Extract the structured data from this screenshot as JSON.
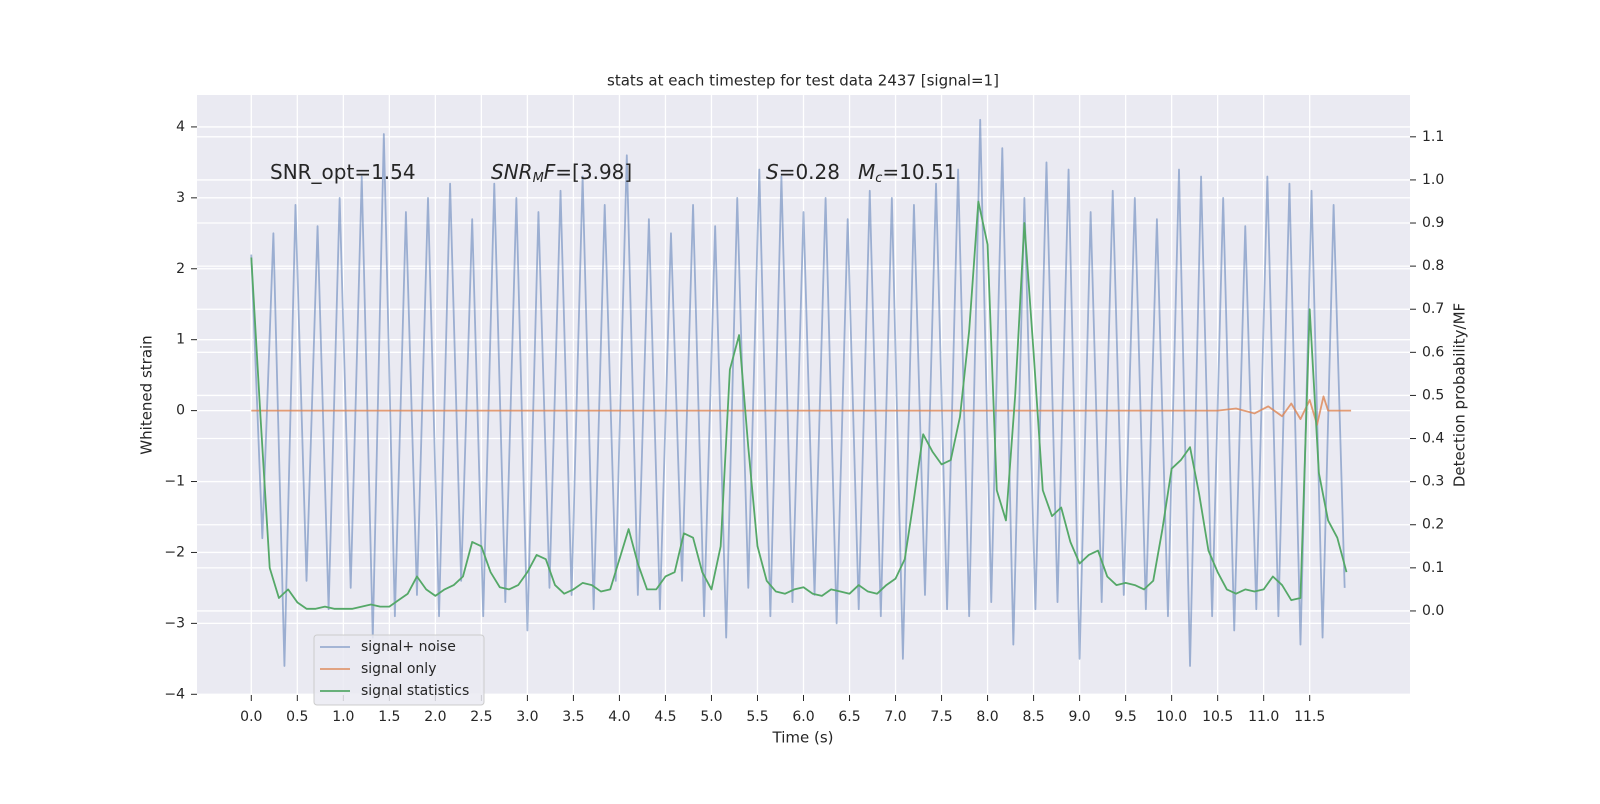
{
  "chart_data": {
    "type": "line",
    "title": "stats at each timestep for test data 2437 [signal=1]",
    "xlabel": "Time (s)",
    "ylabel": "Whitened strain",
    "y2label": "Detection probability/MF",
    "xlim": [
      -0.59,
      12.59
    ],
    "ylim": [
      -4.01,
      4.45
    ],
    "y2lim": [
      -0.195,
      1.197
    ],
    "xticks": [
      {
        "value": 0,
        "label": "0.0"
      },
      0.5,
      {
        "value": 1,
        "label": "1.0"
      },
      1.5,
      {
        "value": 2,
        "label": "2.0"
      },
      2.5,
      {
        "value": 3,
        "label": "3.0"
      },
      3.5,
      {
        "value": 4,
        "label": "4.0"
      },
      4.5,
      {
        "value": 5,
        "label": "5.0"
      },
      5.5,
      {
        "value": 6,
        "label": "6.0"
      },
      6.5,
      {
        "value": 7,
        "label": "7.0"
      },
      7.5,
      {
        "value": 8,
        "label": "8.0"
      },
      8.5,
      {
        "value": 9,
        "label": "9.0"
      },
      9.5,
      {
        "value": 10,
        "label": "10.0"
      },
      10.5,
      {
        "value": 11,
        "label": "11.0"
      },
      11.5
    ],
    "yticks": [
      {
        "value": -4,
        "label": "−4"
      },
      {
        "value": -3,
        "label": "−3"
      },
      {
        "value": -2,
        "label": "−2"
      },
      {
        "value": -1,
        "label": "−1"
      },
      0,
      1,
      2,
      3,
      4
    ],
    "y2ticks": [
      {
        "value": 0,
        "label": "0.0"
      },
      0.1,
      0.2,
      0.3,
      0.4,
      0.5,
      0.6,
      0.7,
      0.8,
      0.9,
      {
        "value": 1,
        "label": "1.0"
      },
      1.1
    ],
    "grid": true,
    "legend": "lower left",
    "annotations": [
      {
        "segments": [
          {
            "text": "SNR_opt=1.54"
          }
        ]
      },
      {
        "segments": [
          {
            "text": "SNR",
            "italic": true
          },
          {
            "text": "M",
            "italic": true,
            "sub": true
          },
          {
            "text": "F",
            "italic": true
          },
          {
            "text": "=[3.98]"
          }
        ]
      },
      {
        "segments": [
          {
            "text": "S",
            "italic": true
          },
          {
            "text": "=0.28"
          }
        ]
      },
      {
        "segments": [
          {
            "text": "M",
            "italic": true
          },
          {
            "text": "c",
            "italic": true,
            "sub": true
          },
          {
            "text": "=10.51"
          }
        ]
      }
    ],
    "series": [
      {
        "name": "signal+ noise",
        "color": "#4c72b0",
        "opacity": 0.5,
        "x": [
          0,
          0.12,
          0.24,
          0.36,
          0.48,
          0.6,
          0.72,
          0.84,
          0.96,
          1.08,
          1.2,
          1.32,
          1.44,
          1.56,
          1.68,
          1.8,
          1.92,
          2.04,
          2.16,
          2.28,
          2.4,
          2.52,
          2.64,
          2.76,
          2.88,
          3,
          3.12,
          3.24,
          3.36,
          3.48,
          3.6,
          3.72,
          3.84,
          3.96,
          4.08,
          4.2,
          4.32,
          4.44,
          4.56,
          4.68,
          4.8,
          4.92,
          5.04,
          5.16,
          5.28,
          5.4,
          5.52,
          5.64,
          5.76,
          5.88,
          6,
          6.12,
          6.24,
          6.36,
          6.48,
          6.6,
          6.72,
          6.84,
          6.96,
          7.08,
          7.2,
          7.32,
          7.44,
          7.56,
          7.68,
          7.8,
          7.92,
          8.04,
          8.16,
          8.28,
          8.4,
          8.52,
          8.64,
          8.76,
          8.88,
          9,
          9.12,
          9.24,
          9.36,
          9.48,
          9.6,
          9.72,
          9.84,
          9.96,
          10.08,
          10.2,
          10.32,
          10.44,
          10.56,
          10.68,
          10.8,
          10.92,
          11.04,
          11.16,
          11.28,
          11.4,
          11.52,
          11.64,
          11.76,
          11.88
        ],
        "values": [
          2.2,
          -1.8,
          2.5,
          -3.6,
          2.9,
          -2.4,
          2.6,
          -2.8,
          3.0,
          -2.5,
          3.3,
          -3.2,
          3.9,
          -2.9,
          2.8,
          -2.6,
          3.0,
          -2.9,
          3.2,
          -2.4,
          2.7,
          -2.9,
          3.2,
          -2.7,
          3.0,
          -3.1,
          2.8,
          -2.5,
          3.1,
          -2.6,
          3.3,
          -2.8,
          2.9,
          -2.4,
          3.6,
          -2.6,
          2.7,
          -2.8,
          2.5,
          -2.4,
          2.9,
          -2.9,
          2.6,
          -3.2,
          3.0,
          -2.5,
          3.4,
          -2.9,
          3.3,
          -2.7,
          2.8,
          -2.6,
          3.0,
          -3.0,
          2.7,
          -2.8,
          3.1,
          -2.9,
          3.0,
          -3.5,
          2.9,
          -2.6,
          3.2,
          -2.8,
          3.4,
          -2.9,
          4.1,
          -2.7,
          3.7,
          -3.3,
          3.0,
          -2.8,
          3.5,
          -2.7,
          3.4,
          -3.5,
          2.8,
          -2.7,
          3.1,
          -2.6,
          3.0,
          -2.8,
          2.7,
          -2.9,
          3.4,
          -3.6,
          3.3,
          -2.9,
          3.0,
          -3.1,
          2.6,
          -2.8,
          3.3,
          -2.9,
          3.2,
          -3.3,
          3.1,
          -3.2,
          2.9,
          -2.5
        ]
      },
      {
        "name": "signal only",
        "color": "#dd8452",
        "opacity": 0.8,
        "x": [
          0,
          10.5,
          10.7,
          10.9,
          11.05,
          11.2,
          11.3,
          11.4,
          11.5,
          11.58,
          11.65,
          11.7,
          11.95
        ],
        "values": [
          0,
          0,
          0.03,
          -0.04,
          0.06,
          -0.08,
          0.1,
          -0.12,
          0.15,
          -0.2,
          0.2,
          0,
          0
        ]
      },
      {
        "name": "signal statistics",
        "color": "#55a868",
        "opacity": 1,
        "axis": "y2",
        "x": [
          0,
          0.1,
          0.2,
          0.3,
          0.4,
          0.5,
          0.6,
          0.7,
          0.8,
          0.9,
          1,
          1.1,
          1.2,
          1.3,
          1.4,
          1.5,
          1.6,
          1.7,
          1.8,
          1.9,
          2,
          2.1,
          2.2,
          2.3,
          2.4,
          2.5,
          2.6,
          2.7,
          2.8,
          2.9,
          3,
          3.1,
          3.2,
          3.3,
          3.4,
          3.5,
          3.6,
          3.7,
          3.8,
          3.9,
          4,
          4.1,
          4.2,
          4.3,
          4.4,
          4.5,
          4.6,
          4.7,
          4.8,
          4.9,
          5,
          5.1,
          5.2,
          5.3,
          5.4,
          5.5,
          5.6,
          5.7,
          5.8,
          5.9,
          6,
          6.1,
          6.2,
          6.3,
          6.4,
          6.5,
          6.6,
          6.7,
          6.8,
          6.9,
          7,
          7.1,
          7.2,
          7.3,
          7.4,
          7.5,
          7.6,
          7.7,
          7.8,
          7.9,
          8,
          8.1,
          8.2,
          8.3,
          8.4,
          8.5,
          8.6,
          8.7,
          8.8,
          8.9,
          9,
          9.1,
          9.2,
          9.3,
          9.4,
          9.5,
          9.6,
          9.7,
          9.8,
          9.9,
          10,
          10.1,
          10.2,
          10.3,
          10.4,
          10.5,
          10.6,
          10.7,
          10.8,
          10.9,
          11,
          11.1,
          11.2,
          11.3,
          11.4,
          11.5,
          11.6,
          11.7,
          11.8,
          11.9
        ],
        "values": [
          0.82,
          0.45,
          0.1,
          0.03,
          0.05,
          0.02,
          0.005,
          0.005,
          0.01,
          0.005,
          0.005,
          0.005,
          0.01,
          0.015,
          0.01,
          0.01,
          0.025,
          0.04,
          0.08,
          0.05,
          0.035,
          0.05,
          0.06,
          0.08,
          0.16,
          0.15,
          0.09,
          0.055,
          0.05,
          0.06,
          0.09,
          0.13,
          0.12,
          0.06,
          0.04,
          0.05,
          0.065,
          0.06,
          0.045,
          0.05,
          0.12,
          0.19,
          0.11,
          0.05,
          0.05,
          0.08,
          0.09,
          0.18,
          0.17,
          0.09,
          0.05,
          0.15,
          0.56,
          0.64,
          0.38,
          0.15,
          0.07,
          0.045,
          0.04,
          0.05,
          0.055,
          0.04,
          0.035,
          0.05,
          0.045,
          0.04,
          0.06,
          0.045,
          0.04,
          0.06,
          0.075,
          0.12,
          0.26,
          0.41,
          0.37,
          0.34,
          0.35,
          0.45,
          0.65,
          0.95,
          0.85,
          0.28,
          0.21,
          0.5,
          0.9,
          0.6,
          0.28,
          0.22,
          0.24,
          0.16,
          0.11,
          0.13,
          0.14,
          0.08,
          0.06,
          0.065,
          0.06,
          0.05,
          0.07,
          0.19,
          0.33,
          0.35,
          0.38,
          0.27,
          0.14,
          0.09,
          0.05,
          0.04,
          0.05,
          0.045,
          0.05,
          0.08,
          0.06,
          0.025,
          0.03,
          0.7,
          0.32,
          0.21,
          0.17,
          0.09
        ]
      }
    ]
  }
}
